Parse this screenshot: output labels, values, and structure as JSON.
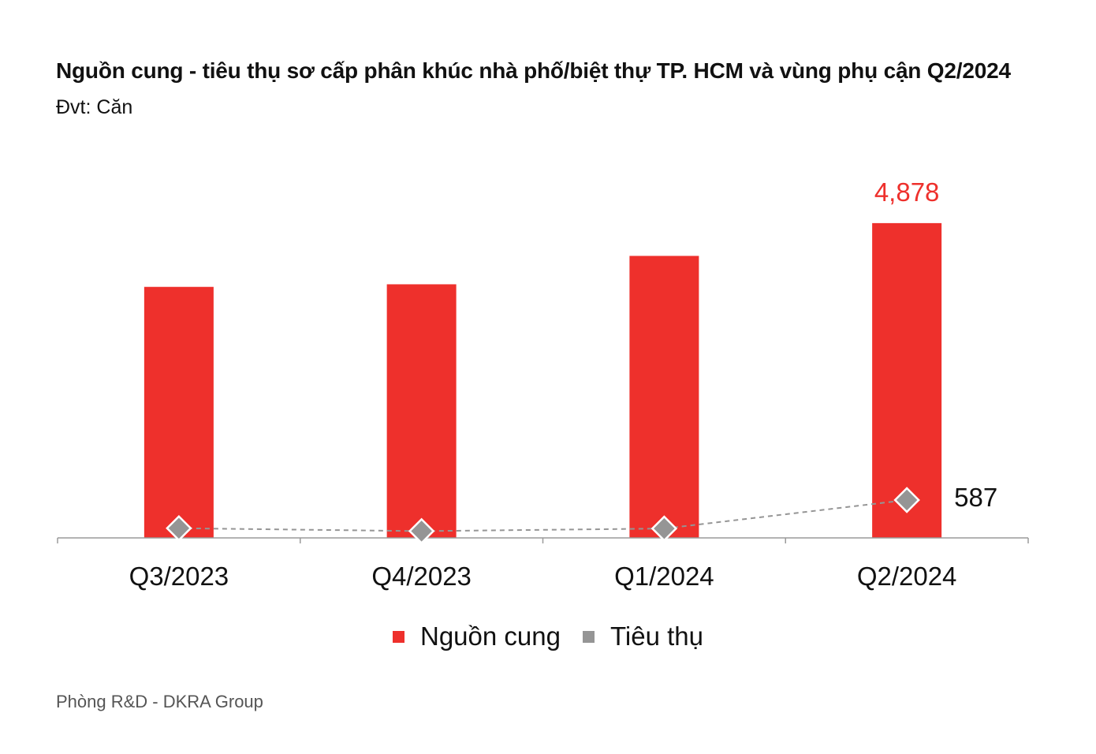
{
  "header": {
    "title": "Nguồn cung - tiêu thụ sơ cấp phân khúc nhà phố/biệt thự TP. HCM và vùng phụ cận Q2/2024",
    "subtitle": "Đvt: Căn"
  },
  "footer": {
    "source": "Phòng R&D - DKRA Group"
  },
  "colors": {
    "supply": "#ee302c",
    "sales": "#959595",
    "axis": "#9a9a9a",
    "highlight": "#ee302c"
  },
  "chart_data": {
    "type": "bar",
    "title": "Nguồn cung - tiêu thụ sơ cấp phân khúc nhà phố/biệt thự TP. HCM và vùng phụ cận Q2/2024",
    "subtitle": "Đvt: Căn",
    "categories": [
      "Q3/2023",
      "Q4/2023",
      "Q1/2024",
      "Q2/2024"
    ],
    "series": [
      {
        "name": "Nguồn cung",
        "kind": "bar",
        "color": "#ee302c",
        "values": [
          3890,
          3930,
          4370,
          4878
        ],
        "labels": [
          "",
          "",
          "",
          "4,878"
        ]
      },
      {
        "name": "Tiêu thụ",
        "kind": "line-marker",
        "color": "#959595",
        "values": [
          150,
          105,
          145,
          587
        ],
        "labels": [
          "",
          "",
          "",
          "587"
        ]
      }
    ],
    "ylim": [
      0,
      5500
    ],
    "grid": false,
    "legend": "bottom-center"
  }
}
